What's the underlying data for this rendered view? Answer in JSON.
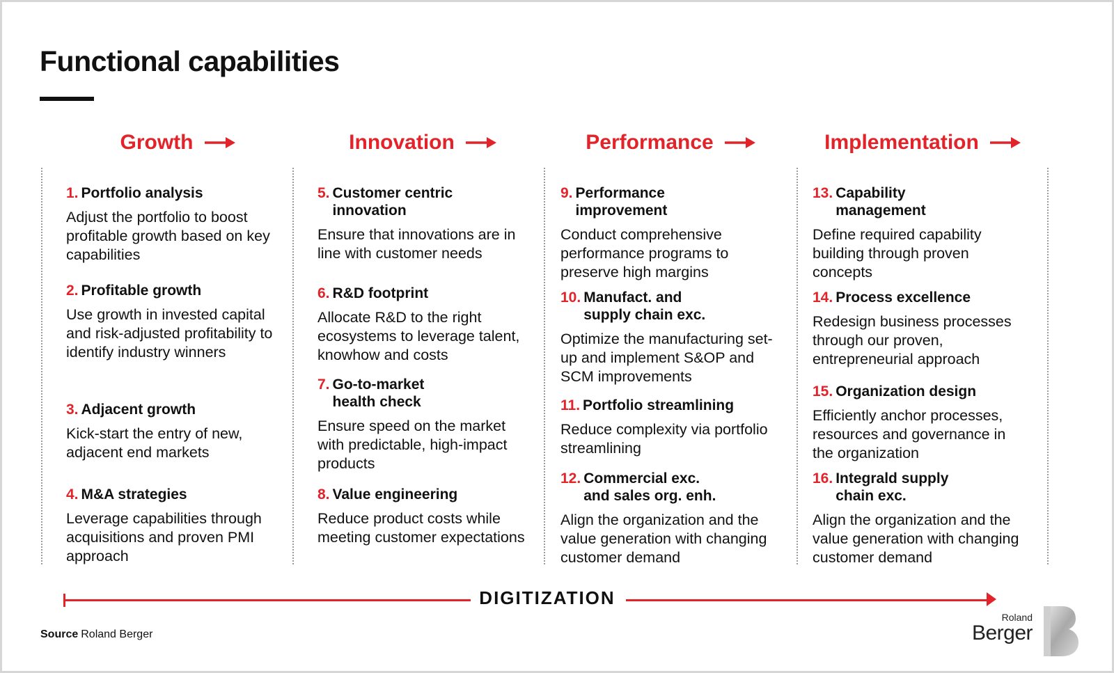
{
  "page_title": "Functional capabilities",
  "columns": [
    {
      "header": "Growth",
      "items": [
        {
          "num": "1.",
          "title": "Portfolio analysis",
          "desc": "Adjust the portfolio to boost profitable growth based on key capabilities"
        },
        {
          "num": "2.",
          "title": "Profitable growth",
          "desc": "Use growth in invested capital and risk-adjusted profitability to identify industry winners"
        },
        {
          "num": "3.",
          "title": "Adjacent growth",
          "desc": "Kick-start the entry of new, adjacent end markets"
        },
        {
          "num": "4.",
          "title": "M&A strategies",
          "desc": "Leverage capabilities through acquisitions and proven PMI approach"
        }
      ]
    },
    {
      "header": "Innovation",
      "items": [
        {
          "num": "5.",
          "title": "Customer centric innovation",
          "desc": "Ensure that innovations are in line with customer needs"
        },
        {
          "num": "6.",
          "title": "R&D footprint",
          "desc": "Allocate R&D to the right ecosystems to leverage talent, knowhow and costs"
        },
        {
          "num": "7.",
          "title": "Go-to-market health check",
          "desc": "Ensure speed on the market with predictable, high-impact products"
        },
        {
          "num": "8.",
          "title": "Value engineering",
          "desc": "Reduce product costs while meeting customer expectations"
        }
      ]
    },
    {
      "header": "Performance",
      "items": [
        {
          "num": "9.",
          "title": "Performance improvement",
          "desc": "Conduct comprehensive performance programs to preserve high margins"
        },
        {
          "num": "10.",
          "title": "Manufact. and supply chain exc.",
          "desc": "Optimize the manufacturing set-up and implement S&OP and SCM improvements"
        },
        {
          "num": "11.",
          "title": "Portfolio streamlining",
          "desc": "Reduce complexity via portfolio streamlining"
        },
        {
          "num": "12.",
          "title": "Commercial exc. and sales org. enh.",
          "desc": "Align the organization and the value generation with changing customer demand"
        }
      ]
    },
    {
      "header": "Implementation",
      "items": [
        {
          "num": "13.",
          "title": "Capability management",
          "desc": "Define required capability building through proven concepts"
        },
        {
          "num": "14.",
          "title": "Process excellence",
          "desc": "Redesign business processes through our proven, entrepreneurial approach"
        },
        {
          "num": "15.",
          "title": "Organization design",
          "desc": "Efficiently anchor processes, resources and governance in the organization"
        },
        {
          "num": "16.",
          "title": "Integrald supply chain exc.",
          "desc": "Align the organization and the value generation with changing customer demand"
        }
      ]
    }
  ],
  "digitization_label": "DIGITIZATION",
  "source": {
    "key": "Source",
    "value": "Roland Berger"
  },
  "logo": {
    "line1": "Roland",
    "line2": "Berger"
  },
  "colors": {
    "accent": "#e2232a",
    "text": "#111111",
    "divider": "#9a9a9a"
  },
  "icons": {
    "header_arrow": "arrow-right-icon",
    "logo_mark": "roland-berger-b-icon"
  }
}
